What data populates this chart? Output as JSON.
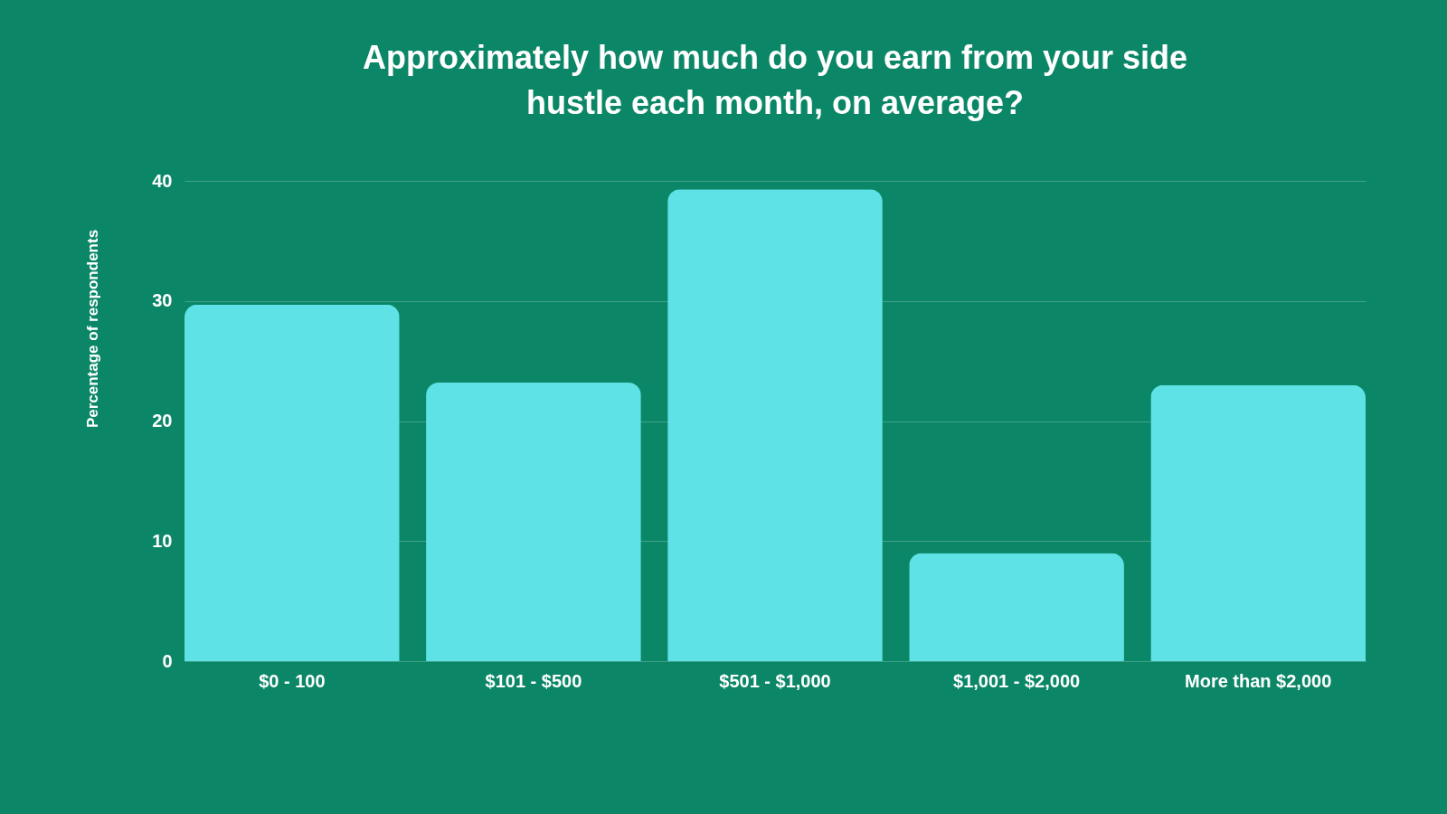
{
  "chart_data": {
    "type": "bar",
    "title": "Approximately how much do you earn from your side hustle each month, on average?",
    "ylabel": "Percentage of respondents",
    "categories": [
      "$0 - 100",
      "$101 - $500",
      "$501 - $1,000",
      "$1,001 - $2,000",
      "More than $2,000"
    ],
    "values": [
      29.7,
      23.2,
      39.3,
      9.0,
      23.0
    ],
    "color": "#5ee2e6",
    "ylim": [
      0,
      40
    ],
    "yticks": [
      0,
      10,
      20,
      30,
      40
    ],
    "grid": "y"
  }
}
